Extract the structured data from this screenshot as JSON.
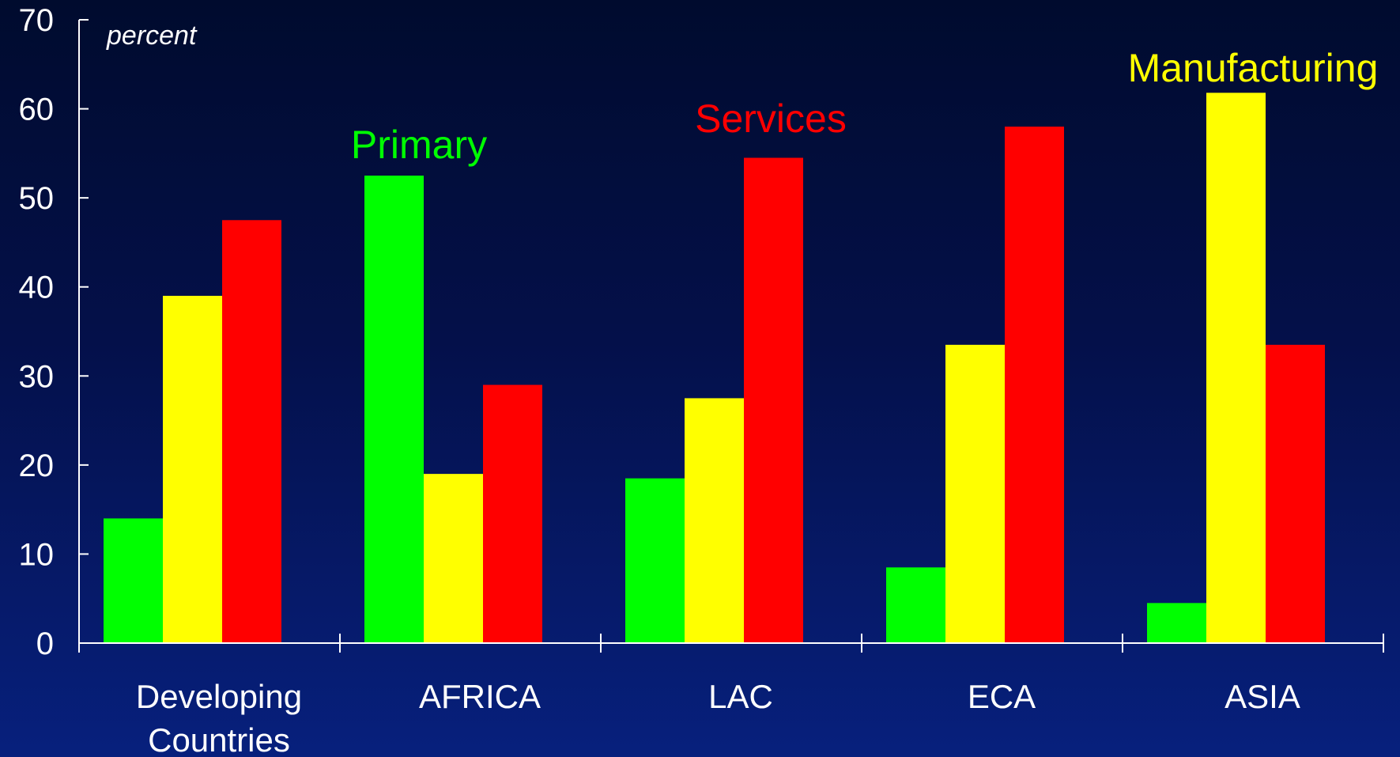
{
  "chart_data": {
    "type": "bar",
    "unit_label": "percent",
    "categories": [
      "Developing Countries",
      "AFRICA",
      "LAC",
      "ECA",
      "ASIA"
    ],
    "series": [
      {
        "name": "Primary",
        "color": "#00ff00",
        "values": [
          14,
          52.5,
          18.5,
          8.5,
          4.5
        ]
      },
      {
        "name": "Manufacturing",
        "color": "#ffff00",
        "values": [
          39,
          19,
          27.5,
          33.5,
          61.8
        ]
      },
      {
        "name": "Services",
        "color": "#ff0000",
        "values": [
          47.5,
          29,
          54.5,
          58,
          33.5
        ]
      }
    ],
    "ylim": [
      0,
      70
    ],
    "yticks": [
      0,
      10,
      20,
      30,
      40,
      50,
      60,
      70
    ],
    "grid": false,
    "legend": "inline labels above bars"
  }
}
